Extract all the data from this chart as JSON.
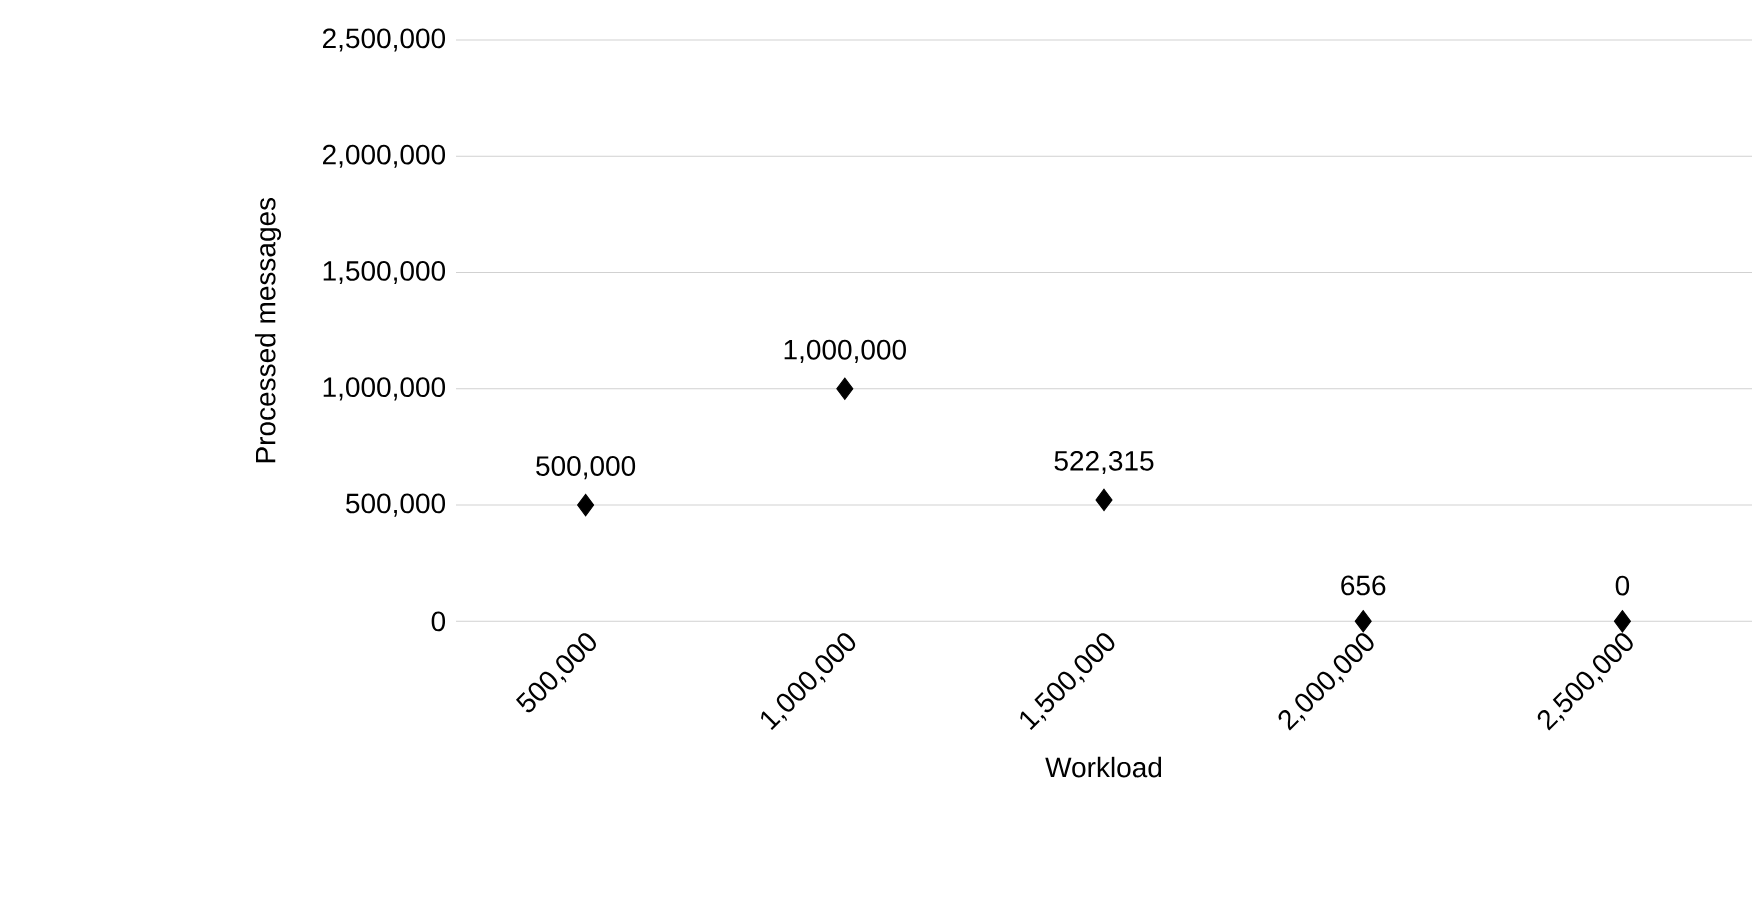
{
  "chart_data": {
    "type": "scatter",
    "xlabel": "Workload",
    "ylabel": "Processed messages",
    "categories": [
      "500,000",
      "1,000,000",
      "1,500,000",
      "2,000,000",
      "2,500,000"
    ],
    "series": [
      {
        "color": "#000000",
        "values": [
          500000,
          1000000,
          522315,
          656,
          0
        ],
        "value_labels": [
          "500,000",
          "1,000,000",
          "522,315",
          "656",
          "0"
        ]
      }
    ],
    "ylim": [
      0,
      2500000
    ],
    "yticks": [
      0,
      {
        "value": 500000,
        "label": "500,000"
      },
      {
        "value": 1000000,
        "label": "1,000,000"
      },
      {
        "value": 1500000,
        "label": "1,500,000"
      },
      {
        "value": 2000000,
        "label": "2,000,000"
      },
      {
        "value": 2500000,
        "label": "2,500,000"
      }
    ],
    "grid": "y",
    "marker": "diamond"
  }
}
